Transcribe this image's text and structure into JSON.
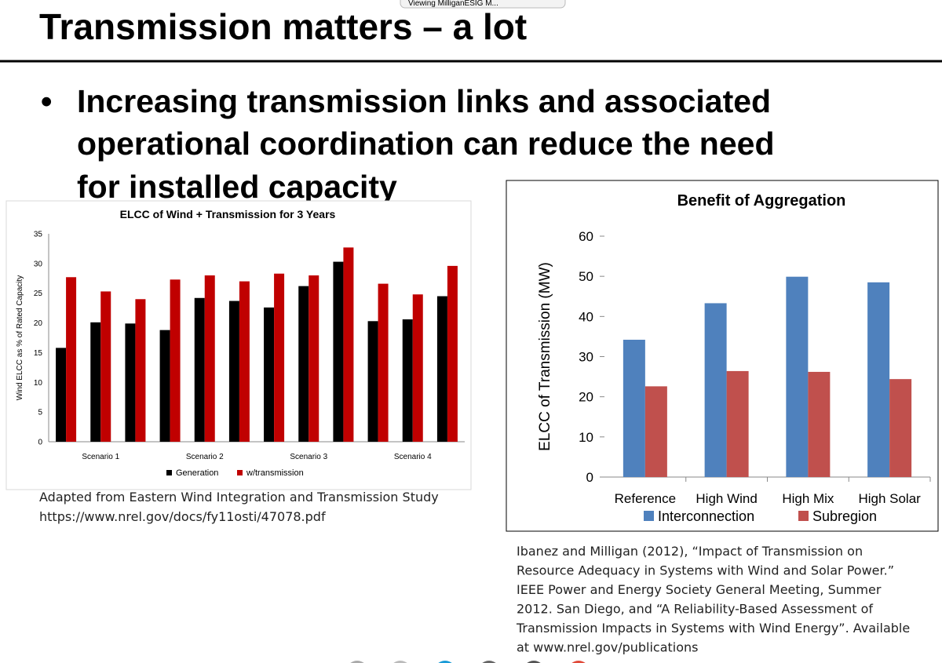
{
  "viewer": {
    "tab": "Viewing MilliganESIG M..."
  },
  "slide": {
    "title": "Transmission matters – a lot",
    "bullet": [
      "Increasing transmission links and associated",
      "operational coordination can reduce the need",
      "for installed capacity"
    ],
    "caption_left": [
      "Adapted from Eastern Wind Integration and Transmission Study",
      "https://www.nrel.gov/docs/fy11osti/47078.pdf"
    ],
    "caption_right": [
      "Ibanez and Milligan (2012), “Impact of Transmission on",
      "Resource Adequacy in Systems with Wind and Solar Power.”",
      "IEEE Power and Energy Society General Meeting, Summer",
      "2012. San Diego, and “A Reliability-Based Assessment of",
      "Transmission Impacts in Systems with Wind Energy”. Available",
      "at www.nrel.gov/publications"
    ]
  },
  "chart_data": [
    {
      "type": "bar",
      "title": "ELCC of Wind + Transmission for 3 Years",
      "ylabel": "Wind ELCC as % of Rated Capacity",
      "categories": [
        null,
        "Scenario 1",
        null,
        null,
        "Scenario 2",
        null,
        null,
        "Scenario 3",
        null,
        null,
        "Scenario 4",
        null
      ],
      "series": [
        {
          "name": "Generation",
          "color": "#000000",
          "values": [
            15.8,
            20.1,
            19.9,
            18.8,
            24.2,
            23.7,
            22.6,
            26.2,
            30.3,
            20.3,
            20.6,
            24.5
          ]
        },
        {
          "name": "w/transmission",
          "color": "#c00000",
          "values": [
            27.7,
            25.3,
            24.0,
            27.3,
            28.0,
            27.0,
            28.3,
            28.0,
            32.7,
            26.6,
            24.8,
            29.6
          ]
        }
      ],
      "ylim": [
        0,
        35
      ],
      "yticks": [
        0,
        5,
        10,
        15,
        20,
        25,
        30,
        35
      ],
      "grid": false,
      "legend": "bottom"
    },
    {
      "type": "bar",
      "title": "Benefit of Aggregation",
      "ylabel": "ELCC of Transmission (MW)",
      "categories": [
        "Reference",
        "High Wind",
        "High Mix",
        "High Solar"
      ],
      "series": [
        {
          "name": "Interconnection",
          "color": "#4f81bd",
          "values": [
            34.2,
            43.3,
            49.9,
            48.5
          ]
        },
        {
          "name": "Subregion",
          "color": "#c0504d",
          "values": [
            22.6,
            26.4,
            26.2,
            24.4
          ]
        }
      ],
      "ylim": [
        0,
        60
      ],
      "yticks": [
        0,
        10,
        20,
        30,
        40,
        50,
        60
      ],
      "grid": false,
      "legend": "bottom"
    }
  ]
}
